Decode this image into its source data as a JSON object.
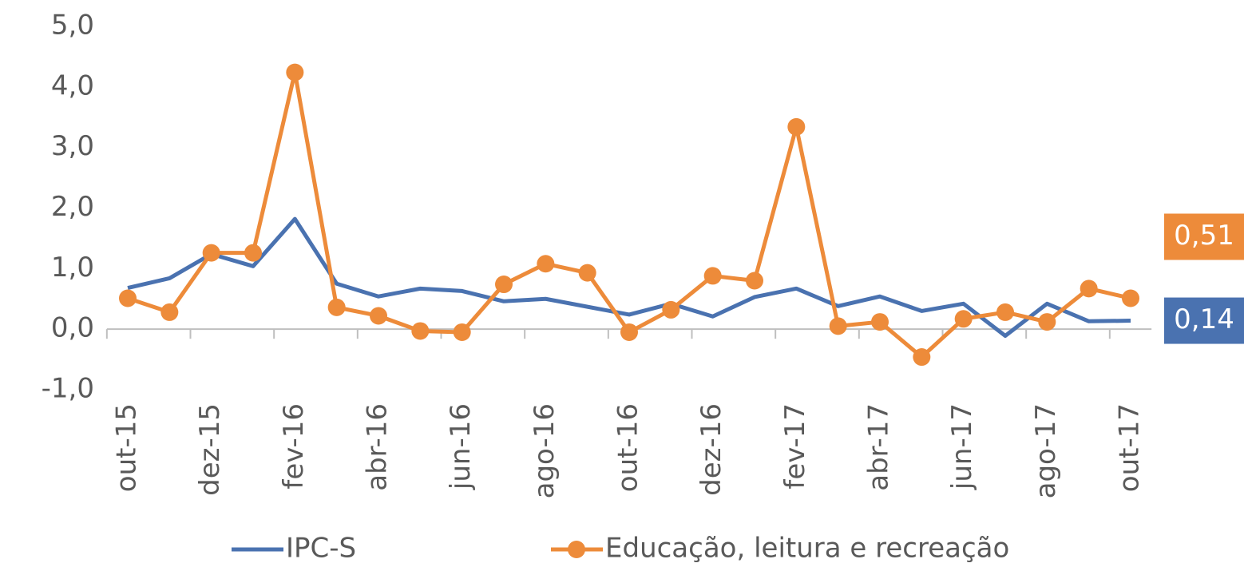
{
  "chart_data": {
    "type": "line",
    "categories": [
      "out-15",
      null,
      "dez-15",
      null,
      "fev-16",
      null,
      "abr-16",
      null,
      "jun-16",
      null,
      "ago-16",
      null,
      "out-16",
      null,
      "dez-16",
      null,
      "fev-17",
      null,
      "abr-17",
      null,
      "jun-17",
      null,
      "ago-17",
      null,
      "out-17"
    ],
    "series": [
      {
        "name": "IPC-S",
        "color": "#4a72b0",
        "marker": false,
        "values": [
          0.68,
          0.84,
          1.24,
          1.04,
          1.82,
          0.75,
          0.54,
          0.67,
          0.63,
          0.46,
          0.5,
          0.37,
          0.24,
          0.42,
          0.21,
          0.53,
          0.67,
          0.38,
          0.54,
          0.3,
          0.42,
          -0.11,
          0.42,
          0.13,
          0.14
        ],
        "end_label": "0,14"
      },
      {
        "name": "Educação, leitura e recreação",
        "color": "#ed8b3a",
        "marker": true,
        "values": [
          0.51,
          0.28,
          1.26,
          1.26,
          4.24,
          0.36,
          0.22,
          -0.03,
          -0.05,
          0.74,
          1.08,
          0.93,
          -0.05,
          0.32,
          0.88,
          0.8,
          3.34,
          0.05,
          0.12,
          -0.46,
          0.17,
          0.28,
          0.12,
          0.67,
          0.51
        ],
        "end_label": "0,51"
      }
    ],
    "ylim": [
      -1,
      5
    ],
    "yticks": [
      {
        "value": -1,
        "label": "-1,0"
      },
      {
        "value": 0,
        "label": "0,0"
      },
      {
        "value": 1,
        "label": "1,0"
      },
      {
        "value": 2,
        "label": "2,0"
      },
      {
        "value": 3,
        "label": "3,0"
      },
      {
        "value": 4,
        "label": "4,0"
      },
      {
        "value": 5,
        "label": "5,0"
      }
    ],
    "grid": false
  }
}
